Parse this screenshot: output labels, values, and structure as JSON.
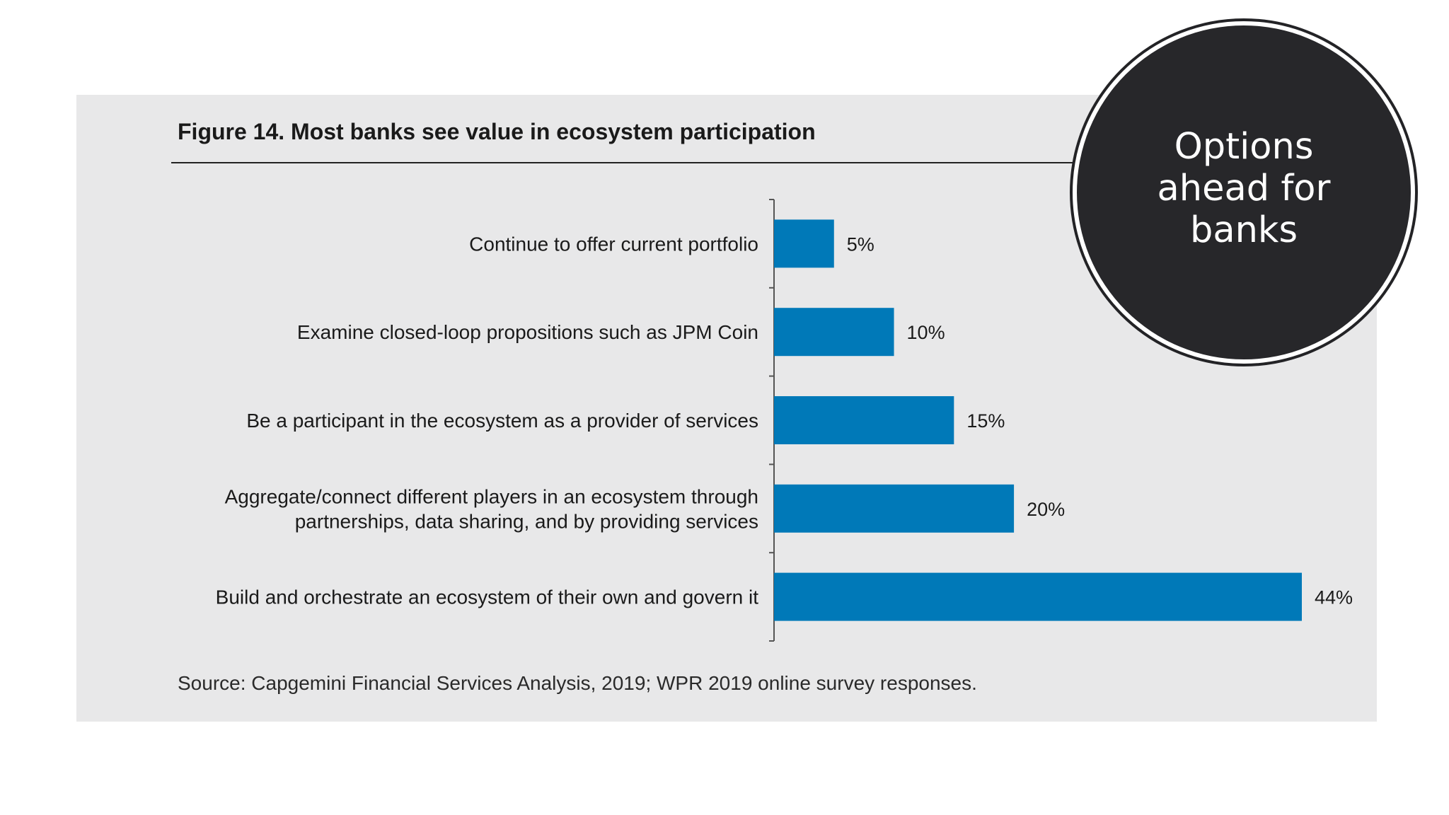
{
  "chart_data": {
    "type": "bar",
    "orientation": "horizontal",
    "title": "Figure 14. Most banks see value in ecosystem participation",
    "categories": [
      [
        "Continue to offer current portfolio"
      ],
      [
        "Examine closed-loop propositions such as JPM Coin"
      ],
      [
        "Be a participant in the ecosystem as a provider of services"
      ],
      [
        "Aggregate/connect different players in an ecosystem through",
        "partnerships, data sharing, and by providing services"
      ],
      [
        "Build and orchestrate an ecosystem of their own and govern it"
      ]
    ],
    "values": [
      5,
      10,
      15,
      20,
      44
    ],
    "value_labels": [
      "5%",
      "10%",
      "15%",
      "20%",
      "44%"
    ],
    "bar_color": "#0079b8",
    "source": "Source: Capgemini Financial Services Analysis, 2019; WPR 2019 online survey responses.",
    "grid": false,
    "legend": "none"
  },
  "badge": {
    "lines": [
      "Options",
      "ahead for",
      "banks"
    ]
  }
}
